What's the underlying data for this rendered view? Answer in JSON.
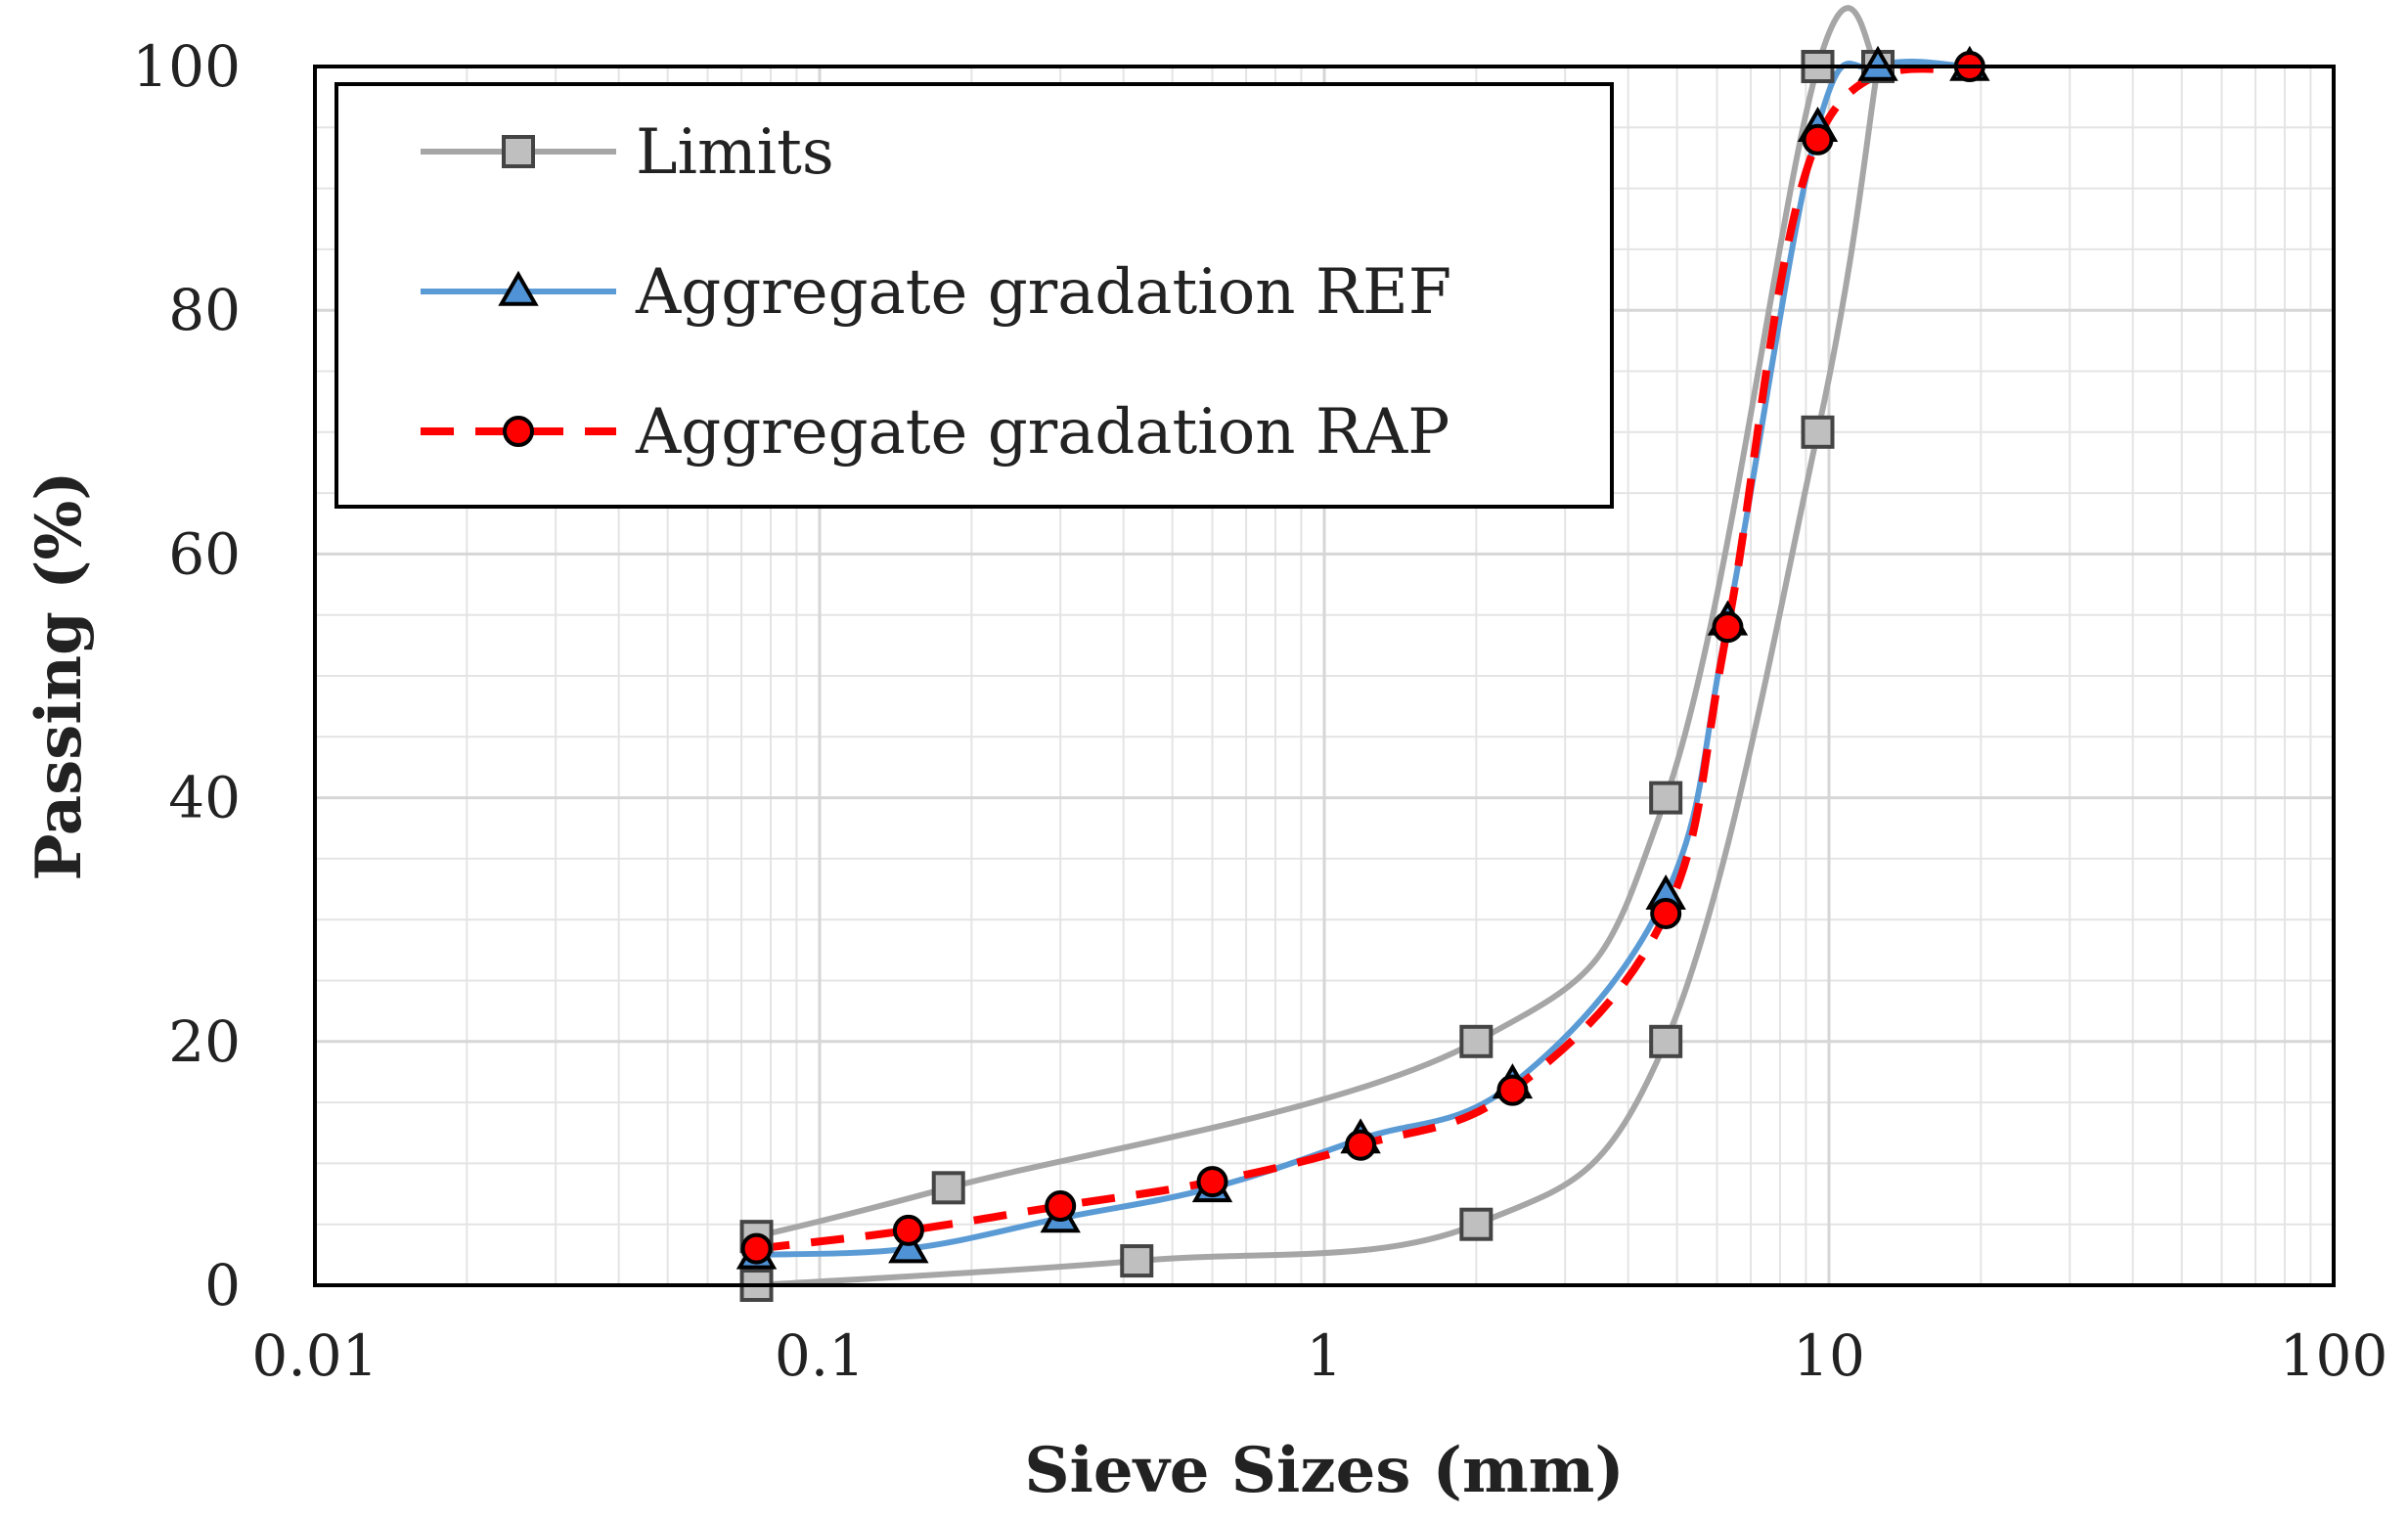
{
  "chart_data": {
    "type": "line",
    "title": "",
    "xlabel": "Sieve Sizes (mm)",
    "ylabel": "Passing (%)",
    "xscale": "log",
    "xlim": [
      0.01,
      100
    ],
    "ylim": [
      0,
      100
    ],
    "x_ticks": [
      0.01,
      0.1,
      1,
      10,
      100
    ],
    "x_tick_labels": [
      "0.01",
      "0.1",
      "1",
      "10",
      "100"
    ],
    "y_ticks": [
      0,
      20,
      40,
      60,
      80,
      100
    ],
    "y_tick_labels": [
      "0",
      "20",
      "40",
      "60",
      "80",
      "100"
    ],
    "grid": true,
    "legend_position": "top-left",
    "series": [
      {
        "name": "Limits",
        "role": "upper-limit",
        "show_in_legend": true,
        "color": "#a6a6a6",
        "marker": "square",
        "marker_fill": "#bfbfbf",
        "dash": "solid",
        "x": [
          0.075,
          0.18,
          2,
          4.75,
          9.5,
          12.5
        ],
        "y": [
          4,
          8,
          20,
          40,
          100,
          100
        ]
      },
      {
        "name": "Limits",
        "role": "lower-limit",
        "show_in_legend": false,
        "color": "#a6a6a6",
        "marker": "square",
        "marker_fill": "#bfbfbf",
        "dash": "solid",
        "x": [
          0.075,
          0.425,
          2,
          4.75,
          9.5,
          12.5
        ],
        "y": [
          0,
          2,
          5,
          20,
          70,
          100
        ]
      },
      {
        "name": "Aggregate gradation REF",
        "show_in_legend": true,
        "color": "#5b9bd5",
        "marker": "triangle",
        "marker_fill": "#4f93d6",
        "dash": "solid",
        "x": [
          0.075,
          0.15,
          0.3,
          0.6,
          1.18,
          2.36,
          4.75,
          6.3,
          9.5,
          12.5,
          19
        ],
        "y": [
          2.5,
          3,
          5.5,
          8,
          12,
          16.5,
          32,
          54.5,
          95,
          100,
          100
        ]
      },
      {
        "name": "Aggregate gradation RAP",
        "show_in_legend": true,
        "color": "#ff0000",
        "marker": "circle",
        "marker_fill": "#ff0000",
        "dash": "dashed",
        "x": [
          0.075,
          0.15,
          0.3,
          0.6,
          1.18,
          2.36,
          4.75,
          6.3,
          9.5,
          19
        ],
        "y": [
          3,
          4.5,
          6.5,
          8.5,
          11.5,
          16,
          30.5,
          54,
          94,
          100
        ]
      }
    ]
  }
}
